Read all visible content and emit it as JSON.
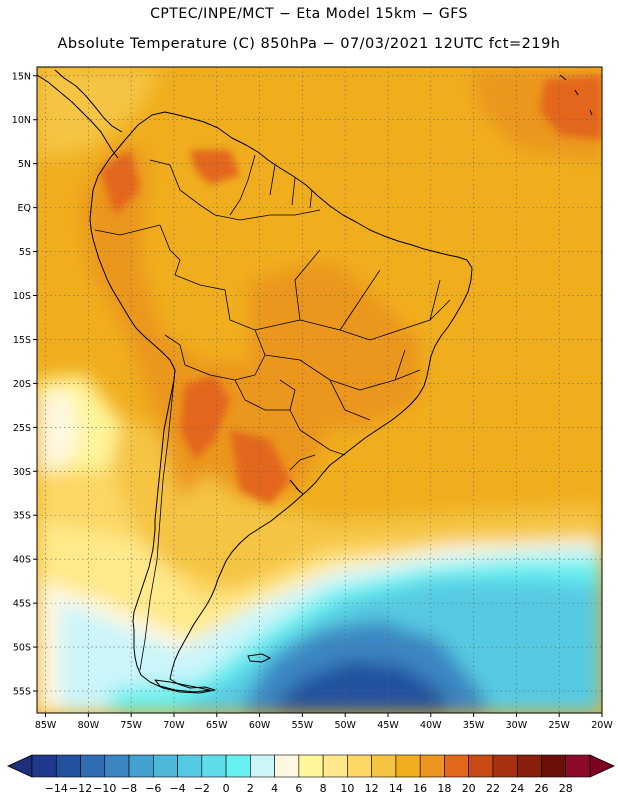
{
  "header": {
    "line1": "CPTEC/INPE/MCT −  Eta Model 15km − GFS",
    "line2": "Absolute Temperature (C) 850hPa − 07/03/2021 12UTC fct=219h"
  },
  "map": {
    "lat_labels": [
      "15N",
      "10N",
      "5N",
      "EQ",
      "5S",
      "10S",
      "15S",
      "20S",
      "25S",
      "30S",
      "35S",
      "40S",
      "45S",
      "50S",
      "55S"
    ],
    "lon_labels": [
      "85W",
      "80W",
      "75W",
      "70W",
      "65W",
      "60W",
      "55W",
      "50W",
      "45W",
      "40W",
      "35W",
      "30W",
      "25W",
      "20W"
    ],
    "lat_range": [
      16,
      -57.5
    ],
    "lon_range": [
      -86,
      -20
    ]
  },
  "colorbar": {
    "labels": [
      "-14",
      "-12",
      "-10",
      "-8",
      "-6",
      "-4",
      "-2",
      "0",
      "2",
      "4",
      "6",
      "8",
      "10",
      "12",
      "14",
      "16",
      "18",
      "20",
      "22",
      "24",
      "26",
      "28"
    ],
    "colors": [
      "#1f3a8c",
      "#24519e",
      "#2f6cb2",
      "#3a86c2",
      "#44a0cf",
      "#4db7da",
      "#56cae2",
      "#5fdcea",
      "#66f0f0",
      "#ccf5fa",
      "#fff8e1",
      "#fff59a",
      "#ffe98a",
      "#fcd765",
      "#f5c443",
      "#f0ae1e",
      "#eb961e",
      "#e3661a",
      "#c84a14",
      "#a83210",
      "#8a1f0d",
      "#6b1008",
      "#8c0a2a"
    ],
    "below_color": "#1d2f7a",
    "above_color": "#80001f"
  }
}
